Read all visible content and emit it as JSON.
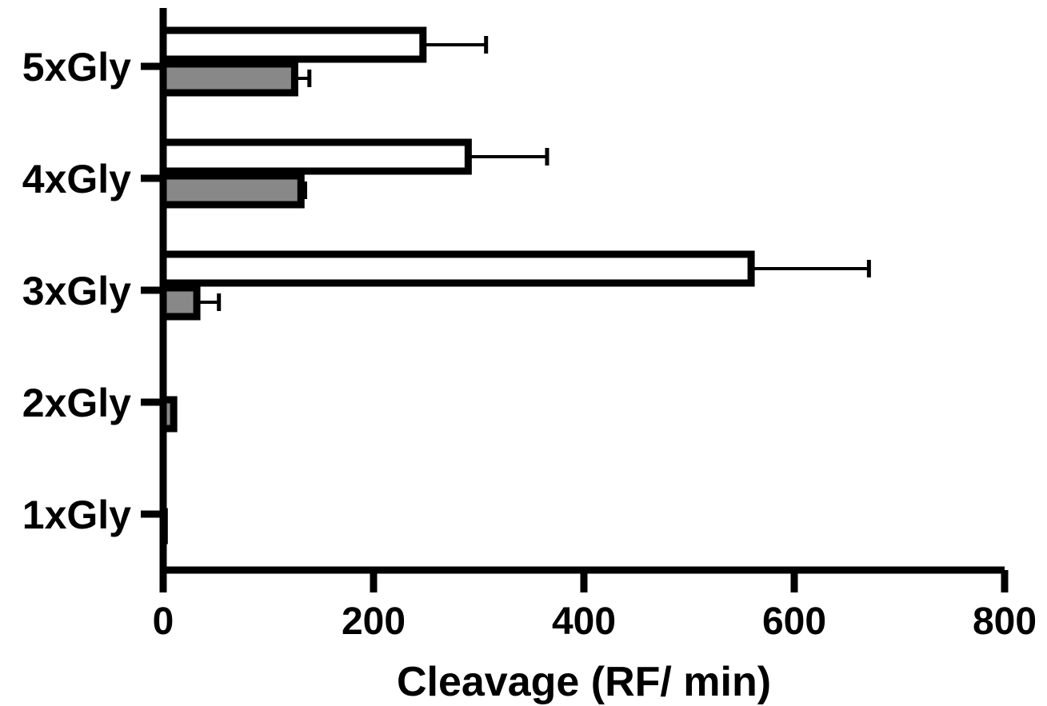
{
  "chart_data": {
    "type": "bar",
    "orientation": "horizontal",
    "title": "",
    "xlabel": "Cleavage (RF/ min)",
    "ylabel": "",
    "xlim": [
      0,
      800
    ],
    "x_ticks": [
      "0",
      "200",
      "400",
      "600",
      "800"
    ],
    "categories": [
      "5xGly",
      "4xGly",
      "3xGly",
      "2xGly",
      "1xGly"
    ],
    "series": [
      {
        "fill": "#ffffff",
        "values": [
          247,
          290,
          559,
          0,
          0
        ],
        "errors": [
          60,
          75,
          112,
          0,
          0
        ]
      },
      {
        "fill": "#888888",
        "values": [
          125,
          131,
          32,
          10,
          1
        ],
        "errors": [
          14,
          4,
          21,
          0,
          0
        ]
      }
    ],
    "grid": false,
    "legend": "none"
  }
}
